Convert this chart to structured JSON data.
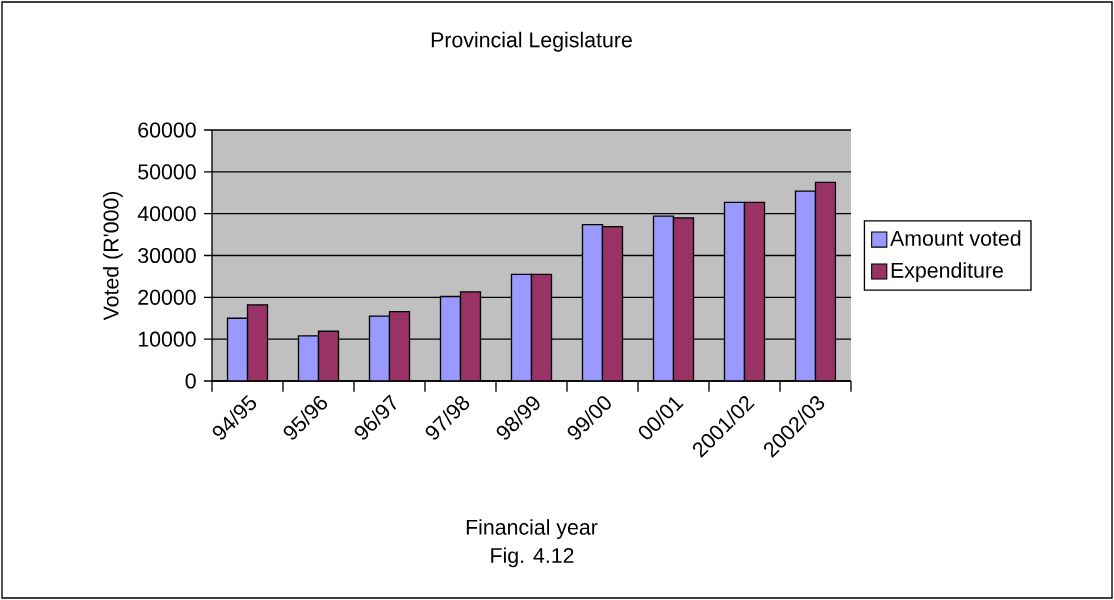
{
  "chart_data": {
    "type": "bar",
    "title": "Provincial Legislature",
    "xlabel": "Financial year",
    "ylabel": "Voted (R'000)",
    "categories": [
      "94/95",
      "95/96",
      "96/97",
      "97/98",
      "98/99",
      "99/00",
      "00/01",
      "2001/02",
      "2002/03"
    ],
    "series": [
      {
        "name": "Amount voted",
        "color": "#9999ff",
        "values": [
          15000,
          10800,
          15500,
          20200,
          25500,
          37400,
          39400,
          42700,
          45400
        ]
      },
      {
        "name": "Expenditure",
        "color": "#993366",
        "values": [
          18200,
          11900,
          16600,
          21300,
          25500,
          36900,
          39000,
          42700,
          47500
        ]
      }
    ],
    "ylim": [
      0,
      60000
    ],
    "yticks": [
      0,
      10000,
      20000,
      30000,
      40000,
      50000,
      60000
    ],
    "grid": "y",
    "legend": "right",
    "annotations": [
      "Fig. 4.12"
    ]
  }
}
